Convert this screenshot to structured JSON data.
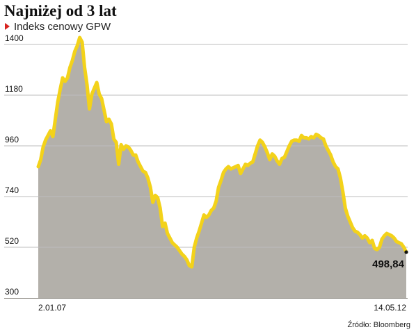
{
  "header": {
    "title": "Najniżej od 3 lat",
    "subtitle": "Indeks cenowy GPW"
  },
  "footer": {
    "source": "Źródło: Bloomberg"
  },
  "colors": {
    "line": "#f3d21a",
    "area": "#b3b0aa",
    "marker": "#d7231f",
    "grid": "#bdbdbd",
    "text": "#111111"
  },
  "chart_data": {
    "type": "area",
    "title": "Najniżej od 3 lat",
    "subtitle": "Indeks cenowy GPW",
    "xlabel": "",
    "ylabel": "",
    "ylim": [
      300,
      1460
    ],
    "yticks": [
      "1400",
      "1180",
      "960",
      "740",
      "520",
      "300"
    ],
    "ytick_values": [
      1400,
      1180,
      960,
      740,
      520,
      300
    ],
    "xtick_labels": [
      "2.01.07",
      "14.05.12"
    ],
    "grid": true,
    "legend": "none",
    "last_value_label": "498,84",
    "series": [
      {
        "values": [
          870,
          900,
          955,
          985,
          1005,
          1025,
          1000,
          1075,
          1150,
          1205,
          1255,
          1240,
          1255,
          1300,
          1330,
          1370,
          1395,
          1430,
          1410,
          1300,
          1225,
          1120,
          1185,
          1210,
          1235,
          1185,
          1165,
          1115,
          1065,
          1075,
          1055,
          990,
          975,
          880,
          965,
          945,
          960,
          955,
          940,
          920,
          920,
          890,
          870,
          850,
          845,
          820,
          780,
          715,
          745,
          735,
          690,
          610,
          625,
          580,
          560,
          540,
          530,
          520,
          505,
          490,
          480,
          465,
          440,
          435,
          520,
          560,
          590,
          625,
          660,
          650,
          660,
          680,
          690,
          720,
          780,
          810,
          845,
          860,
          870,
          860,
          865,
          870,
          875,
          840,
          860,
          880,
          875,
          885,
          890,
          925,
          960,
          985,
          975,
          955,
          930,
          900,
          925,
          915,
          895,
          880,
          905,
          910,
          935,
          960,
          980,
          985,
          985,
          980,
          1005,
          995,
          995,
          990,
          1000,
          995,
          1010,
          1005,
          995,
          990,
          960,
          940,
          920,
          890,
          870,
          860,
          820,
          760,
          690,
          655,
          630,
          605,
          590,
          585,
          575,
          560,
          570,
          560,
          540,
          550,
          515,
          510,
          520,
          555,
          570,
          580,
          575,
          570,
          560,
          545,
          540,
          535,
          520,
          498.84
        ]
      }
    ]
  }
}
